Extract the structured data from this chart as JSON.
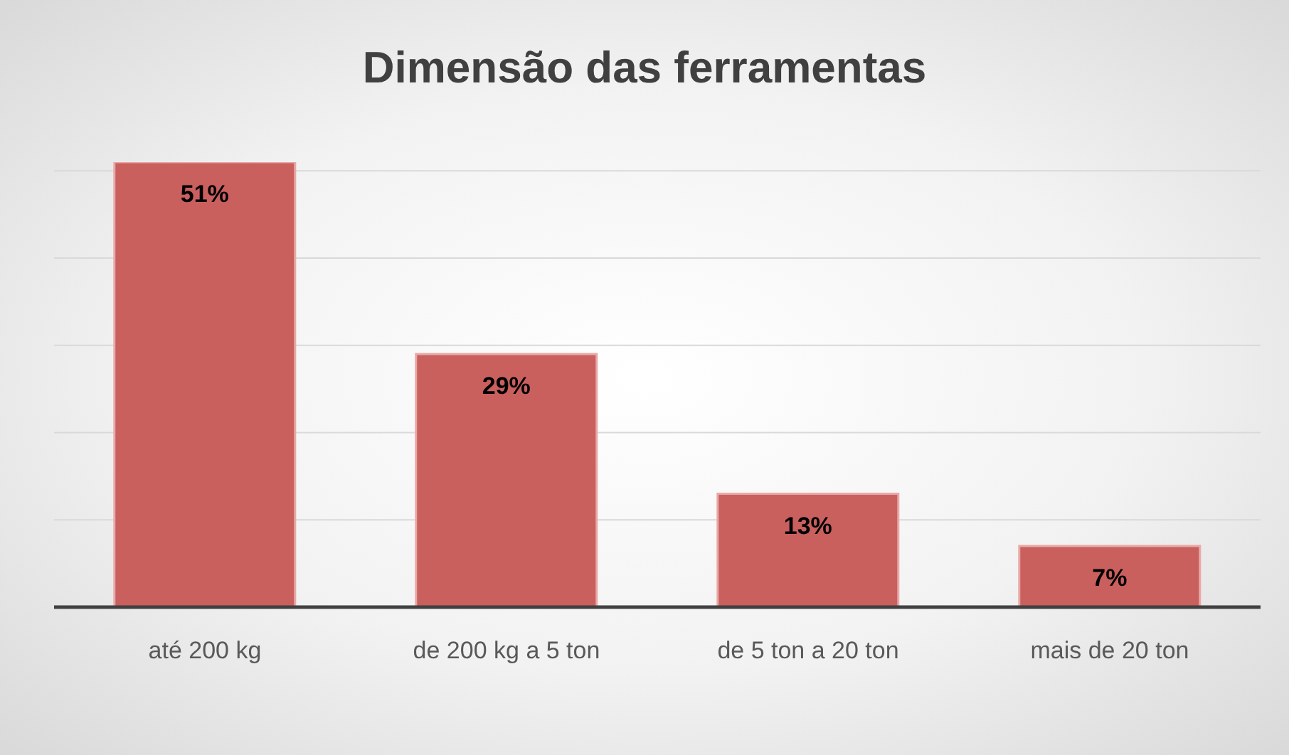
{
  "chart_data": {
    "type": "bar",
    "title": "Dimensão das ferramentas",
    "categories": [
      "até 200 kg",
      "de 200 kg a 5 ton",
      "de 5 ton a 20 ton",
      "mais de 20 ton"
    ],
    "values": [
      51,
      29,
      13,
      7
    ],
    "color": "#c9605e",
    "value_labels": [
      "51%",
      "29%",
      "13%",
      "7%"
    ],
    "yticks": [
      {
        "value": 0,
        "label": null
      },
      {
        "value": 10,
        "label": null
      },
      {
        "value": 20,
        "label": null
      },
      {
        "value": 30,
        "label": null
      },
      {
        "value": 40,
        "label": null
      },
      {
        "value": 50,
        "label": null
      }
    ],
    "grid": "y",
    "tick_labels": "x",
    "legend": false
  }
}
